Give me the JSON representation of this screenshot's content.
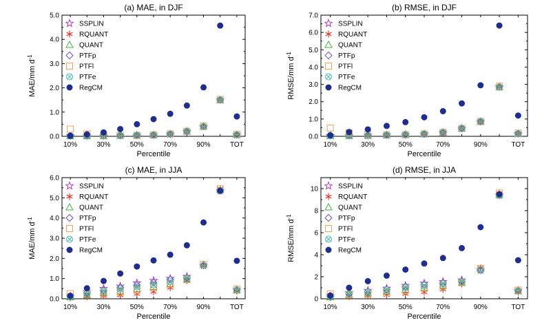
{
  "chart_data": [
    {
      "type": "scatter",
      "title": "(a) MAE, in DJF",
      "ylabel": "MAE/mm d",
      "ylabel_sup": "-1",
      "xlabel": "Percentile",
      "ylim": [
        0,
        5
      ],
      "yticks": [
        "0.0",
        "1.0",
        "2.0",
        "3.0",
        "4.0",
        "5.0"
      ],
      "xticks": [
        "10%",
        "30%",
        "50%",
        "70%",
        "90%",
        "TOT"
      ],
      "legend_position": "top-left",
      "series": [
        {
          "name": "SSPLIN",
          "values": [
            0.02,
            0.02,
            0.02,
            0.03,
            0.04,
            0.05,
            0.09,
            0.2,
            0.4,
            1.5,
            0.06
          ]
        },
        {
          "name": "RQUANT",
          "values": [
            0.02,
            0.02,
            0.02,
            0.03,
            0.04,
            0.05,
            0.09,
            0.2,
            0.4,
            1.5,
            0.06
          ]
        },
        {
          "name": "QUANT",
          "values": [
            0.02,
            0.02,
            0.02,
            0.03,
            0.04,
            0.05,
            0.1,
            0.2,
            0.42,
            1.5,
            0.06
          ]
        },
        {
          "name": "PTFp",
          "values": [
            0.02,
            0.02,
            0.02,
            0.03,
            0.04,
            0.05,
            0.09,
            0.2,
            0.41,
            1.5,
            0.06
          ]
        },
        {
          "name": "PTFl",
          "values": [
            0.3,
            0.1,
            0.05,
            0.04,
            0.04,
            0.06,
            0.1,
            0.21,
            0.42,
            1.52,
            0.08
          ]
        },
        {
          "name": "PTFe",
          "values": [
            0.02,
            0.02,
            0.02,
            0.03,
            0.04,
            0.05,
            0.09,
            0.2,
            0.4,
            1.5,
            0.06
          ]
        },
        {
          "name": "RegCM",
          "values": [
            0.02,
            0.08,
            0.16,
            0.3,
            0.5,
            0.71,
            0.93,
            1.27,
            2.02,
            4.57,
            0.82
          ]
        }
      ]
    },
    {
      "type": "scatter",
      "title": "(b) RMSE, in DJF",
      "ylabel": "RMSE/mm d",
      "ylabel_sup": "-1",
      "xlabel": "Percentile",
      "ylim": [
        0,
        7
      ],
      "yticks": [
        "0.0",
        "1.0",
        "2.0",
        "3.0",
        "4.0",
        "5.0",
        "6.0",
        "7.0"
      ],
      "xticks": [
        "10%",
        "30%",
        "50%",
        "70%",
        "90%",
        "TOT"
      ],
      "legend_position": "top-left",
      "series": [
        {
          "name": "SSPLIN",
          "values": [
            0.04,
            0.04,
            0.05,
            0.07,
            0.09,
            0.13,
            0.22,
            0.45,
            0.85,
            2.85,
            0.15
          ]
        },
        {
          "name": "RQUANT",
          "values": [
            0.04,
            0.04,
            0.05,
            0.07,
            0.09,
            0.13,
            0.22,
            0.45,
            0.85,
            2.85,
            0.15
          ]
        },
        {
          "name": "QUANT",
          "values": [
            0.04,
            0.04,
            0.05,
            0.07,
            0.09,
            0.13,
            0.22,
            0.45,
            0.85,
            2.85,
            0.15
          ]
        },
        {
          "name": "PTFp",
          "values": [
            0.04,
            0.04,
            0.05,
            0.07,
            0.09,
            0.13,
            0.22,
            0.45,
            0.85,
            2.85,
            0.15
          ]
        },
        {
          "name": "PTFl",
          "values": [
            0.48,
            0.2,
            0.1,
            0.08,
            0.1,
            0.14,
            0.23,
            0.46,
            0.86,
            2.9,
            0.18
          ]
        },
        {
          "name": "PTFe",
          "values": [
            0.04,
            0.04,
            0.05,
            0.07,
            0.09,
            0.13,
            0.22,
            0.45,
            0.85,
            2.85,
            0.15
          ]
        },
        {
          "name": "RegCM",
          "values": [
            0.06,
            0.25,
            0.4,
            0.6,
            0.82,
            1.1,
            1.45,
            1.9,
            2.95,
            6.4,
            1.2
          ]
        }
      ]
    },
    {
      "type": "scatter",
      "title": "(c) MAE, in JJA",
      "ylabel": "MAE/mm d",
      "ylabel_sup": "-1",
      "xlabel": "Percentile",
      "ylim": [
        0,
        6
      ],
      "yticks": [
        "0.0",
        "1.0",
        "2.0",
        "3.0",
        "4.0",
        "5.0",
        "6.0"
      ],
      "xticks": [
        "10%",
        "30%",
        "50%",
        "70%",
        "90%",
        "TOT"
      ],
      "legend_position": "top-left",
      "series": [
        {
          "name": "SSPLIN",
          "values": [
            0.12,
            0.35,
            0.5,
            0.62,
            0.78,
            0.9,
            1.0,
            1.1,
            1.65,
            5.35,
            0.45
          ]
        },
        {
          "name": "RQUANT",
          "values": [
            0.05,
            0.1,
            0.14,
            0.18,
            0.24,
            0.35,
            0.55,
            0.9,
            1.65,
            5.45,
            0.38
          ]
        },
        {
          "name": "QUANT",
          "values": [
            0.08,
            0.2,
            0.3,
            0.38,
            0.5,
            0.6,
            0.72,
            0.95,
            1.7,
            5.4,
            0.42
          ]
        },
        {
          "name": "PTFp",
          "values": [
            0.1,
            0.3,
            0.42,
            0.55,
            0.68,
            0.8,
            0.95,
            1.05,
            1.65,
            5.35,
            0.45
          ]
        },
        {
          "name": "PTFl",
          "values": [
            0.25,
            0.25,
            0.28,
            0.32,
            0.42,
            0.55,
            0.72,
            0.95,
            1.7,
            5.45,
            0.48
          ]
        },
        {
          "name": "PTFe",
          "values": [
            0.1,
            0.25,
            0.38,
            0.48,
            0.6,
            0.7,
            0.85,
            1.0,
            1.65,
            5.35,
            0.43
          ]
        },
        {
          "name": "RegCM",
          "values": [
            0.15,
            0.52,
            0.88,
            1.25,
            1.6,
            1.9,
            2.18,
            2.65,
            3.78,
            5.35,
            1.88
          ]
        }
      ]
    },
    {
      "type": "scatter",
      "title": "(d) RMSE, in JJA",
      "ylabel": "RMSE/mm d",
      "ylabel_sup": "-1",
      "xlabel": "Percentile",
      "ylim": [
        0,
        11
      ],
      "yticks": [
        "0",
        "2",
        "4",
        "6",
        "8",
        "10"
      ],
      "xticks": [
        "10%",
        "30%",
        "50%",
        "70%",
        "90%",
        "TOT"
      ],
      "legend_position": "top-left",
      "series": [
        {
          "name": "SSPLIN",
          "values": [
            0.25,
            0.55,
            0.75,
            0.95,
            1.2,
            1.4,
            1.55,
            1.7,
            2.6,
            9.4,
            0.75
          ]
        },
        {
          "name": "RQUANT",
          "values": [
            0.1,
            0.2,
            0.25,
            0.35,
            0.45,
            0.6,
            0.85,
            1.35,
            2.8,
            9.55,
            0.6
          ]
        },
        {
          "name": "QUANT",
          "values": [
            0.15,
            0.35,
            0.5,
            0.65,
            0.85,
            1.0,
            1.2,
            1.5,
            2.7,
            9.45,
            0.7
          ]
        },
        {
          "name": "PTFp",
          "values": [
            0.2,
            0.5,
            0.65,
            0.85,
            1.1,
            1.3,
            1.45,
            1.6,
            2.6,
            9.4,
            0.75
          ]
        },
        {
          "name": "PTFl",
          "values": [
            0.45,
            0.4,
            0.45,
            0.55,
            0.75,
            0.95,
            1.15,
            1.45,
            2.75,
            9.6,
            0.78
          ]
        },
        {
          "name": "PTFe",
          "values": [
            0.2,
            0.45,
            0.6,
            0.8,
            1.0,
            1.2,
            1.35,
            1.55,
            2.6,
            9.4,
            0.72
          ]
        },
        {
          "name": "RegCM",
          "values": [
            0.3,
            1.0,
            1.6,
            2.1,
            2.65,
            3.2,
            3.7,
            4.6,
            6.5,
            9.5,
            3.5
          ]
        }
      ]
    }
  ],
  "style": {
    "colors": {
      "SSPLIN": "#b03fb0",
      "RQUANT": "#e8281c",
      "QUANT": "#46b03a",
      "PTFp": "#6b55c8",
      "PTFl": "#f5a05a",
      "PTFe": "#3fb8a8",
      "RegCM": "#1f2d8c"
    },
    "markers": {
      "SSPLIN": "star",
      "RQUANT": "asterisk",
      "QUANT": "triangle",
      "PTFp": "diamond",
      "PTFl": "square",
      "PTFe": "circle-x",
      "RegCM": "dot"
    }
  }
}
